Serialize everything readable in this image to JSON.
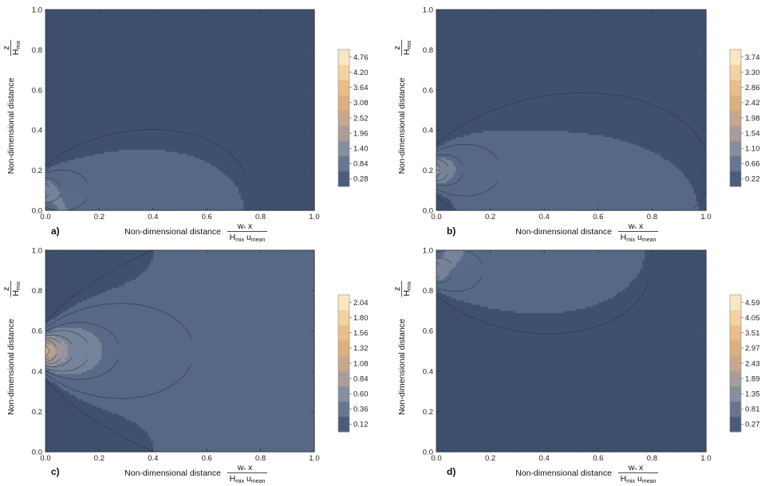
{
  "panels": [
    {
      "label": "a)",
      "xlabel": "Non-dimensional distance",
      "xfrac": {
        "num": "w",
        "num_sub": "*",
        "num_tail": " x",
        "den": "H",
        "den_sub": "mix",
        "den_tail": " u",
        "den_tail_sub": "mean"
      },
      "ylabel": "Non-dimensional distance",
      "yfrac": {
        "num": "z",
        "den": "H",
        "den_sub": "mix"
      },
      "xticks": [
        "0.0",
        "0.2",
        "0.4",
        "0.6",
        "0.8",
        "1.0"
      ],
      "yticks": [
        "0.0",
        "0.2",
        "0.4",
        "0.6",
        "0.8",
        "1.0"
      ],
      "colorbar_ticks": [
        "0.28",
        "0.84",
        "1.40",
        "1.96",
        "2.52",
        "3.08",
        "3.64",
        "4.20",
        "4.76"
      ]
    },
    {
      "label": "b)",
      "xlabel": "Non-dimensional distance",
      "xfrac": {
        "num": "w",
        "num_sub": "*",
        "num_tail": " x",
        "den": "H",
        "den_sub": "mix",
        "den_tail": " u",
        "den_tail_sub": "mean"
      },
      "ylabel": "Non-dimensional distance",
      "yfrac": {
        "num": "z",
        "den": "H",
        "den_sub": "mix"
      },
      "xticks": [
        "0.0",
        "0.2",
        "0.4",
        "0.6",
        "0.8",
        "1.0"
      ],
      "yticks": [
        "0.0",
        "0.2",
        "0.4",
        "0.6",
        "0.8",
        "1.0"
      ],
      "colorbar_ticks": [
        "0.22",
        "0.66",
        "1.10",
        "1.54",
        "1.98",
        "2.42",
        "2.86",
        "3.30",
        "3.74"
      ]
    },
    {
      "label": "c)",
      "xlabel": "Non-dimensional distance",
      "xfrac": {
        "num": "w",
        "num_sub": "*",
        "num_tail": " x",
        "den": "H",
        "den_sub": "mix",
        "den_tail": " u",
        "den_tail_sub": "mean"
      },
      "ylabel": "Non-dimensional distance",
      "yfrac": {
        "num": "z",
        "den": "H",
        "den_sub": "mix"
      },
      "xticks": [
        "0.0",
        "0.2",
        "0.4",
        "0.6",
        "0.8",
        "1.0"
      ],
      "yticks": [
        "0.0",
        "0.2",
        "0.4",
        "0.6",
        "0.8",
        "1.0"
      ],
      "colorbar_ticks": [
        "0.12",
        "0.36",
        "0.60",
        "0.84",
        "1.08",
        "1.32",
        "1.56",
        "1.80",
        "2.04"
      ]
    },
    {
      "label": "d)",
      "xlabel": "Non-dimensional distance",
      "xfrac": {
        "num": "w",
        "num_sub": "*",
        "num_tail": " x",
        "den": "H",
        "den_sub": "mix",
        "den_tail": " u",
        "den_tail_sub": "mean"
      },
      "ylabel": "Non-dimensional distance",
      "yfrac": {
        "num": "z",
        "den": "H",
        "den_sub": "mix"
      },
      "xticks": [
        "0.0",
        "0.2",
        "0.4",
        "0.6",
        "0.8",
        "1.0"
      ],
      "yticks": [
        "0.0",
        "0.2",
        "0.4",
        "0.6",
        "0.8",
        "1.0"
      ],
      "colorbar_ticks": [
        "0.27",
        "0.81",
        "1.35",
        "1.89",
        "2.43",
        "2.97",
        "3.51",
        "4.05",
        "4.59"
      ]
    }
  ],
  "chart_data": [
    {
      "type": "heatmap",
      "panel": "a)",
      "source_height": 0.1,
      "x_range": [
        0,
        1
      ],
      "y_range": [
        0,
        1
      ],
      "levels": [
        0.28,
        0.84,
        1.4,
        1.96,
        2.52,
        3.08,
        3.64,
        4.2,
        4.76
      ],
      "max_level": 4.76,
      "colormap": [
        "#3e4f6e",
        "#5a6c89",
        "#7f8aa0",
        "#a59c9c",
        "#c7a88c",
        "#dfb27c",
        "#ecc28c",
        "#f6d9ac",
        "#fdf1d6"
      ]
    },
    {
      "type": "heatmap",
      "panel": "b)",
      "source_height": 0.2,
      "x_range": [
        0,
        1
      ],
      "y_range": [
        0,
        1
      ],
      "levels": [
        0.22,
        0.66,
        1.1,
        1.54,
        1.98,
        2.42,
        2.86,
        3.3,
        3.74
      ],
      "max_level": 3.74,
      "colormap": [
        "#3e4f6e",
        "#5a6c89",
        "#7f8aa0",
        "#a59c9c",
        "#c7a88c",
        "#dfb27c",
        "#ecc28c",
        "#f6d9ac",
        "#fdf1d6"
      ]
    },
    {
      "type": "heatmap",
      "panel": "c)",
      "source_height": 0.5,
      "x_range": [
        0,
        1
      ],
      "y_range": [
        0,
        1
      ],
      "levels": [
        0.12,
        0.36,
        0.6,
        0.84,
        1.08,
        1.32,
        1.56,
        1.8,
        2.04
      ],
      "max_level": 2.04,
      "colormap": [
        "#3e4f6e",
        "#5a6c89",
        "#7f8aa0",
        "#a59c9c",
        "#c7a88c",
        "#dfb27c",
        "#ecc28c",
        "#f6d9ac",
        "#fdf1d6"
      ]
    },
    {
      "type": "heatmap",
      "panel": "d)",
      "source_height": 0.9,
      "x_range": [
        0,
        1
      ],
      "y_range": [
        0,
        1
      ],
      "levels": [
        0.27,
        0.81,
        1.35,
        1.89,
        2.43,
        2.97,
        3.51,
        4.05,
        4.59
      ],
      "max_level": 4.59,
      "colormap": [
        "#3e4f6e",
        "#5a6c89",
        "#7f8aa0",
        "#a59c9c",
        "#c7a88c",
        "#dfb27c",
        "#ecc28c",
        "#f6d9ac",
        "#fdf1d6"
      ]
    }
  ]
}
